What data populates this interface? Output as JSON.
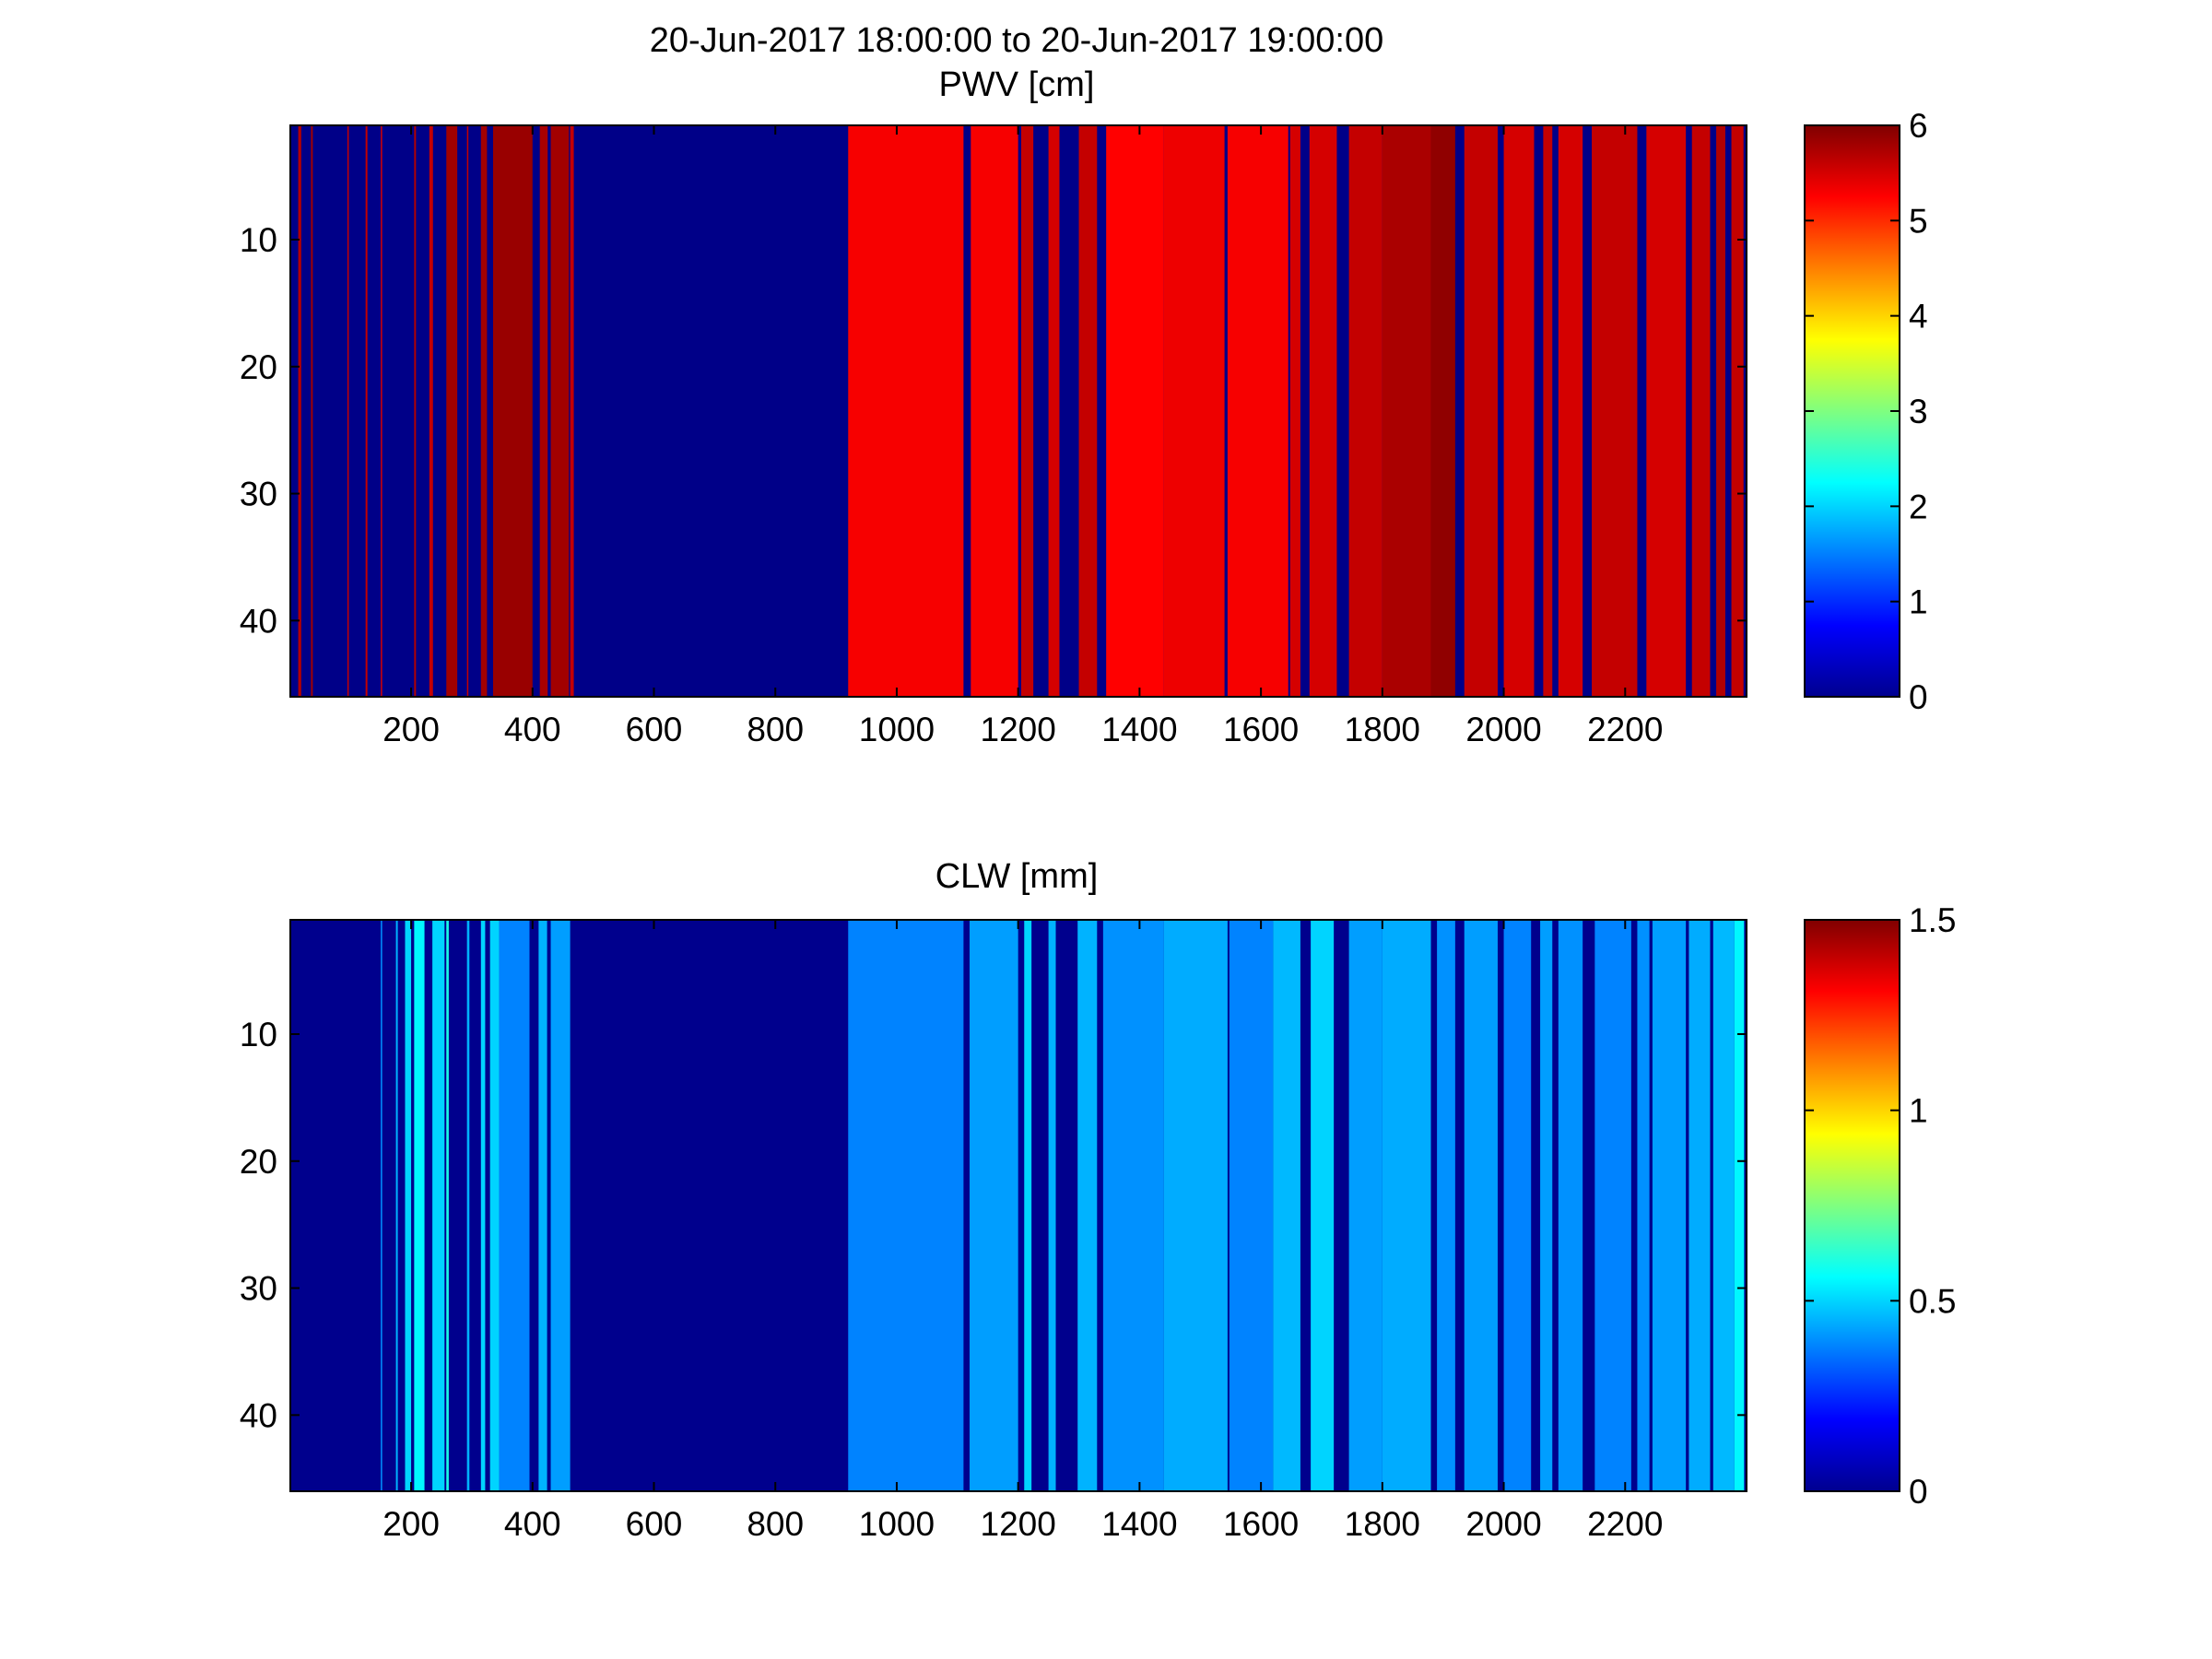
{
  "figure": {
    "title": "20-Jun-2017 18:00:00 to 20-Jun-2017 19:00:00"
  },
  "chart_data": [
    {
      "type": "heatmap",
      "title": "PWV [cm]",
      "xlabel": "",
      "ylabel": "",
      "xlim": [
        1,
        2400
      ],
      "ylim": [
        1,
        46
      ],
      "y_reversed": true,
      "colormap": "jet",
      "clim": [
        0,
        6
      ],
      "xticks": [
        200,
        400,
        600,
        800,
        1000,
        1200,
        1400,
        1600,
        1800,
        2000,
        2200
      ],
      "yticks": [
        10,
        20,
        30,
        40
      ],
      "colorbar_ticks": [
        0,
        1,
        2,
        3,
        4,
        5,
        6
      ],
      "background_value": 0.05,
      "bands": [
        {
          "x": [
            14,
            19
          ],
          "v": 5.7
        },
        {
          "x": [
            35,
            38
          ],
          "v": 5.8
        },
        {
          "x": [
            95,
            97
          ],
          "v": 5.6
        },
        {
          "x": [
            125,
            128
          ],
          "v": 5.6
        },
        {
          "x": [
            150,
            152
          ],
          "v": 5.5
        },
        {
          "x": [
            205,
            208
          ],
          "v": 5.7
        },
        {
          "x": [
            230,
            236
          ],
          "v": 5.6
        },
        {
          "x": [
            258,
            276
          ],
          "v": 5.8
        },
        {
          "x": [
            292,
            294
          ],
          "v": 5.6
        },
        {
          "x": [
            315,
            325
          ],
          "v": 5.8
        },
        {
          "x": [
            335,
            400
          ],
          "v": 5.85
        },
        {
          "x": [
            412,
            425
          ],
          "v": 5.75
        },
        {
          "x": [
            430,
            460
          ],
          "v": 5.8
        },
        {
          "x": [
            462,
            468
          ],
          "v": 5.6
        },
        {
          "x": [
            920,
            1110
          ],
          "v": 5.3
        },
        {
          "x": [
            1122,
            1200
          ],
          "v": 5.3
        },
        {
          "x": [
            1205,
            1225
          ],
          "v": 5.6
        },
        {
          "x": [
            1250,
            1268
          ],
          "v": 5.5
        },
        {
          "x": [
            1300,
            1330
          ],
          "v": 5.6
        },
        {
          "x": [
            1345,
            1440
          ],
          "v": 5.25
        },
        {
          "x": [
            1440,
            1540
          ],
          "v": 5.35
        },
        {
          "x": [
            1545,
            1645
          ],
          "v": 5.3
        },
        {
          "x": [
            1648,
            1665
          ],
          "v": 5.5
        },
        {
          "x": [
            1680,
            1725
          ],
          "v": 5.5
        },
        {
          "x": [
            1745,
            1800
          ],
          "v": 5.6
        },
        {
          "x": [
            1800,
            1880
          ],
          "v": 5.75
        },
        {
          "x": [
            1880,
            1920
          ],
          "v": 5.9
        },
        {
          "x": [
            1935,
            1990
          ],
          "v": 5.6
        },
        {
          "x": [
            2000,
            2050
          ],
          "v": 5.5
        },
        {
          "x": [
            2065,
            2080
          ],
          "v": 5.6
        },
        {
          "x": [
            2090,
            2130
          ],
          "v": 5.5
        },
        {
          "x": [
            2145,
            2220
          ],
          "v": 5.6
        },
        {
          "x": [
            2235,
            2300
          ],
          "v": 5.5
        },
        {
          "x": [
            2310,
            2340
          ],
          "v": 5.6
        },
        {
          "x": [
            2350,
            2365
          ],
          "v": 5.7
        },
        {
          "x": [
            2375,
            2395
          ],
          "v": 5.6
        }
      ]
    },
    {
      "type": "heatmap",
      "title": "CLW [mm]",
      "xlabel": "",
      "ylabel": "",
      "xlim": [
        1,
        2400
      ],
      "ylim": [
        1,
        46
      ],
      "y_reversed": true,
      "colormap": "jet",
      "clim": [
        0,
        1.5
      ],
      "xticks": [
        200,
        400,
        600,
        800,
        1000,
        1200,
        1400,
        1600,
        1800,
        2000,
        2200
      ],
      "yticks": [
        10,
        20,
        30,
        40
      ],
      "colorbar_ticks": [
        0,
        0.5,
        1,
        1.5
      ],
      "background_value": 0.02,
      "bands": [
        {
          "x": [
            150,
            152
          ],
          "v": 0.4
        },
        {
          "x": [
            175,
            178
          ],
          "v": 0.45
        },
        {
          "x": [
            190,
            200
          ],
          "v": 0.5
        },
        {
          "x": [
            205,
            222
          ],
          "v": 0.55
        },
        {
          "x": [
            235,
            255
          ],
          "v": 0.5
        },
        {
          "x": [
            258,
            262
          ],
          "v": 0.6
        },
        {
          "x": [
            292,
            296
          ],
          "v": 0.45
        },
        {
          "x": [
            315,
            322
          ],
          "v": 0.5
        },
        {
          "x": [
            330,
            345
          ],
          "v": 0.5
        },
        {
          "x": [
            345,
            395
          ],
          "v": 0.38
        },
        {
          "x": [
            410,
            424
          ],
          "v": 0.45
        },
        {
          "x": [
            430,
            462
          ],
          "v": 0.42
        },
        {
          "x": [
            920,
            1110
          ],
          "v": 0.38
        },
        {
          "x": [
            1120,
            1200
          ],
          "v": 0.42
        },
        {
          "x": [
            1210,
            1222
          ],
          "v": 0.5
        },
        {
          "x": [
            1250,
            1262
          ],
          "v": 0.45
        },
        {
          "x": [
            1298,
            1330
          ],
          "v": 0.45
        },
        {
          "x": [
            1340,
            1440
          ],
          "v": 0.4
        },
        {
          "x": [
            1440,
            1545
          ],
          "v": 0.44
        },
        {
          "x": [
            1548,
            1620
          ],
          "v": 0.38
        },
        {
          "x": [
            1620,
            1665
          ],
          "v": 0.46
        },
        {
          "x": [
            1682,
            1720
          ],
          "v": 0.5
        },
        {
          "x": [
            1745,
            1800
          ],
          "v": 0.42
        },
        {
          "x": [
            1800,
            1880
          ],
          "v": 0.44
        },
        {
          "x": [
            1890,
            1920
          ],
          "v": 0.4
        },
        {
          "x": [
            1935,
            1990
          ],
          "v": 0.42
        },
        {
          "x": [
            2000,
            2045
          ],
          "v": 0.38
        },
        {
          "x": [
            2060,
            2080
          ],
          "v": 0.42
        },
        {
          "x": [
            2090,
            2130
          ],
          "v": 0.4
        },
        {
          "x": [
            2150,
            2210
          ],
          "v": 0.38
        },
        {
          "x": [
            2220,
            2240
          ],
          "v": 0.4
        },
        {
          "x": [
            2245,
            2300
          ],
          "v": 0.42
        },
        {
          "x": [
            2305,
            2340
          ],
          "v": 0.44
        },
        {
          "x": [
            2345,
            2380
          ],
          "v": 0.46
        },
        {
          "x": [
            2380,
            2396
          ],
          "v": 0.55
        }
      ]
    }
  ]
}
